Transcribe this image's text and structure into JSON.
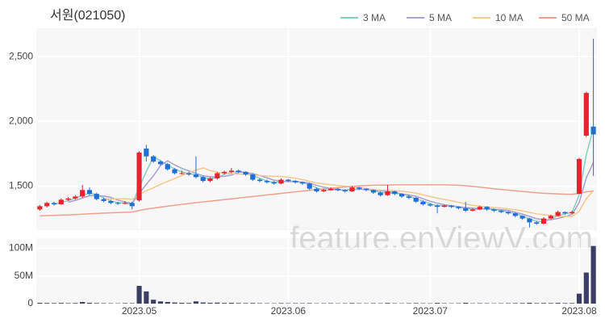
{
  "chart_data": {
    "type": "candlestick",
    "title": "서원(021050)",
    "watermark": "feature.enViewV.com",
    "legend": "top-right",
    "grid": true,
    "up_color": "#e8232f",
    "down_color": "#1f6fd6",
    "xlim": [
      -0.5,
      78.5
    ],
    "xticks": [
      {
        "value": 14,
        "label": "2023.05"
      },
      {
        "value": 35,
        "label": "2023.06"
      },
      {
        "value": 55,
        "label": "2023.07"
      },
      {
        "value": 76,
        "label": "2023.08"
      }
    ],
    "ylim": [
      1160,
      2720
    ],
    "yticks": [
      {
        "value": 1500,
        "label": "1,500"
      },
      {
        "value": 2000,
        "label": "2,000"
      },
      {
        "value": 2500,
        "label": "2,500"
      }
    ],
    "ohlc": [
      [
        1320,
        1355,
        1310,
        1345
      ],
      [
        1345,
        1380,
        1335,
        1370
      ],
      [
        1370,
        1380,
        1350,
        1360
      ],
      [
        1360,
        1405,
        1355,
        1395
      ],
      [
        1395,
        1415,
        1385,
        1405
      ],
      [
        1405,
        1430,
        1395,
        1420
      ],
      [
        1420,
        1510,
        1410,
        1470
      ],
      [
        1470,
        1490,
        1430,
        1440
      ],
      [
        1440,
        1450,
        1390,
        1400
      ],
      [
        1400,
        1410,
        1375,
        1385
      ],
      [
        1385,
        1395,
        1360,
        1370
      ],
      [
        1370,
        1380,
        1355,
        1365
      ],
      [
        1365,
        1385,
        1360,
        1370
      ],
      [
        1370,
        1380,
        1320,
        1345
      ],
      [
        1390,
        1770,
        1380,
        1760
      ],
      [
        1790,
        1820,
        1690,
        1730
      ],
      [
        1730,
        1740,
        1680,
        1690
      ],
      [
        1690,
        1700,
        1660,
        1670
      ],
      [
        1670,
        1680,
        1620,
        1630
      ],
      [
        1630,
        1640,
        1590,
        1600
      ],
      [
        1600,
        1620,
        1590,
        1600
      ],
      [
        1600,
        1610,
        1580,
        1590
      ],
      [
        1590,
        1730,
        1560,
        1570
      ],
      [
        1570,
        1580,
        1530,
        1540
      ],
      [
        1540,
        1570,
        1530,
        1560
      ],
      [
        1560,
        1610,
        1550,
        1600
      ],
      [
        1600,
        1620,
        1590,
        1610
      ],
      [
        1610,
        1640,
        1600,
        1620
      ],
      [
        1620,
        1630,
        1600,
        1610
      ],
      [
        1610,
        1615,
        1580,
        1590
      ],
      [
        1590,
        1600,
        1540,
        1550
      ],
      [
        1550,
        1560,
        1530,
        1540
      ],
      [
        1540,
        1550,
        1520,
        1530
      ],
      [
        1530,
        1540,
        1510,
        1520
      ],
      [
        1520,
        1560,
        1515,
        1550
      ],
      [
        1550,
        1555,
        1530,
        1540
      ],
      [
        1540,
        1545,
        1520,
        1530
      ],
      [
        1530,
        1535,
        1510,
        1520
      ],
      [
        1520,
        1525,
        1470,
        1480
      ],
      [
        1480,
        1490,
        1450,
        1460
      ],
      [
        1460,
        1480,
        1455,
        1470
      ],
      [
        1470,
        1490,
        1465,
        1480
      ],
      [
        1480,
        1485,
        1460,
        1470
      ],
      [
        1470,
        1475,
        1450,
        1460
      ],
      [
        1460,
        1500,
        1455,
        1490
      ],
      [
        1490,
        1495,
        1470,
        1480
      ],
      [
        1480,
        1485,
        1460,
        1470
      ],
      [
        1470,
        1475,
        1440,
        1450
      ],
      [
        1450,
        1460,
        1420,
        1430
      ],
      [
        1430,
        1510,
        1425,
        1460
      ],
      [
        1460,
        1465,
        1430,
        1440
      ],
      [
        1440,
        1445,
        1410,
        1420
      ],
      [
        1420,
        1430,
        1400,
        1410
      ],
      [
        1410,
        1415,
        1370,
        1380
      ],
      [
        1380,
        1390,
        1350,
        1360
      ],
      [
        1360,
        1370,
        1340,
        1350
      ],
      [
        1350,
        1360,
        1290,
        1340
      ],
      [
        1340,
        1360,
        1335,
        1350
      ],
      [
        1350,
        1355,
        1330,
        1340
      ],
      [
        1340,
        1345,
        1320,
        1330
      ],
      [
        1330,
        1380,
        1300,
        1310
      ],
      [
        1310,
        1330,
        1305,
        1320
      ],
      [
        1320,
        1350,
        1315,
        1340
      ],
      [
        1340,
        1345,
        1310,
        1320
      ],
      [
        1320,
        1325,
        1300,
        1310
      ],
      [
        1310,
        1315,
        1290,
        1300
      ],
      [
        1300,
        1305,
        1280,
        1290
      ],
      [
        1290,
        1295,
        1260,
        1270
      ],
      [
        1270,
        1275,
        1240,
        1250
      ],
      [
        1250,
        1255,
        1180,
        1220
      ],
      [
        1220,
        1230,
        1200,
        1210
      ],
      [
        1210,
        1260,
        1205,
        1250
      ],
      [
        1250,
        1280,
        1245,
        1270
      ],
      [
        1270,
        1310,
        1265,
        1300
      ],
      [
        1300,
        1305,
        1280,
        1290
      ],
      [
        1290,
        1310,
        1285,
        1300
      ],
      [
        1440,
        1720,
        1440,
        1710
      ],
      [
        1890,
        2230,
        1880,
        2220
      ],
      [
        1960,
        2640,
        1580,
        1900
      ]
    ],
    "series": [
      {
        "name": "3 MA",
        "color": "#86d0c0",
        "values": [
          null,
          null,
          1358,
          1375,
          1387,
          1407,
          1432,
          1443,
          1437,
          1408,
          1385,
          1373,
          1368,
          1360,
          1492,
          1612,
          1727,
          1697,
          1663,
          1633,
          1610,
          1597,
          1587,
          1567,
          1557,
          1567,
          1590,
          1610,
          1613,
          1607,
          1583,
          1560,
          1540,
          1530,
          1533,
          1537,
          1540,
          1530,
          1510,
          1487,
          1470,
          1470,
          1473,
          1470,
          1473,
          1477,
          1480,
          1467,
          1450,
          1447,
          1443,
          1440,
          1423,
          1403,
          1383,
          1363,
          1350,
          1347,
          1343,
          1340,
          1327,
          1320,
          1323,
          1327,
          1323,
          1310,
          1300,
          1287,
          1270,
          1247,
          1227,
          1227,
          1243,
          1273,
          1287,
          1297,
          1433,
          1743,
          1943
        ]
      },
      {
        "name": "5 MA",
        "color": "#ab9fd3",
        "values": [
          null,
          null,
          null,
          null,
          1375,
          1390,
          1408,
          1426,
          1427,
          1423,
          1413,
          1392,
          1378,
          1367,
          1442,
          1514,
          1579,
          1659,
          1696,
          1664,
          1638,
          1618,
          1598,
          1580,
          1572,
          1572,
          1576,
          1586,
          1608,
          1606,
          1596,
          1582,
          1564,
          1546,
          1538,
          1536,
          1534,
          1532,
          1524,
          1506,
          1492,
          1482,
          1472,
          1468,
          1474,
          1476,
          1474,
          1470,
          1464,
          1458,
          1452,
          1440,
          1432,
          1422,
          1402,
          1384,
          1368,
          1356,
          1348,
          1342,
          1334,
          1330,
          1328,
          1324,
          1320,
          1318,
          1312,
          1298,
          1284,
          1266,
          1248,
          1240,
          1240,
          1250,
          1264,
          1282,
          1374,
          1564,
          1684
        ]
      },
      {
        "name": "10 MA",
        "color": "#f4c98d",
        "values": [
          null,
          null,
          null,
          null,
          null,
          null,
          null,
          null,
          null,
          1399,
          1402,
          1402,
          1403,
          1398,
          1434,
          1465,
          1487,
          1514,
          1537,
          1559,
          1582,
          1604,
          1624,
          1641,
          1621,
          1608,
          1600,
          1595,
          1593,
          1592,
          1587,
          1582,
          1578,
          1576,
          1575,
          1569,
          1561,
          1551,
          1538,
          1525,
          1517,
          1511,
          1505,
          1499,
          1493,
          1487,
          1481,
          1474,
          1469,
          1469,
          1466,
          1460,
          1454,
          1446,
          1433,
          1420,
          1407,
          1397,
          1388,
          1375,
          1362,
          1352,
          1345,
          1340,
          1335,
          1331,
          1325,
          1317,
          1308,
          1297,
          1286,
          1279,
          1272,
          1268,
          1266,
          1265,
          1307,
          1402,
          1467
        ]
      },
      {
        "name": "50 MA",
        "color": "#f2a090",
        "values": [
          1270,
          1272,
          1274,
          1276,
          1278,
          1280,
          1283,
          1286,
          1289,
          1292,
          1294,
          1296,
          1298,
          1300,
          1312,
          1322,
          1330,
          1338,
          1345,
          1352,
          1359,
          1366,
          1372,
          1378,
          1384,
          1390,
          1396,
          1402,
          1408,
          1414,
          1420,
          1426,
          1432,
          1438,
          1444,
          1450,
          1456,
          1462,
          1468,
          1474,
          1479,
          1484,
          1489,
          1494,
          1498,
          1502,
          1505,
          1507,
          1508,
          1509,
          1510,
          1510,
          1510,
          1510,
          1510,
          1510,
          1510,
          1510,
          1509,
          1507,
          1503,
          1498,
          1492,
          1486,
          1480,
          1474,
          1469,
          1464,
          1459,
          1454,
          1449,
          1445,
          1442,
          1440,
          1438,
          1437,
          1444,
          1456,
          1462
        ]
      }
    ],
    "volume": {
      "color": "#3b3e63",
      "ylim": [
        0,
        118000000
      ],
      "yticks": [
        0,
        {
          "value": 50000000,
          "label": "50M"
        },
        {
          "value": 100000000,
          "label": "100M"
        }
      ],
      "values": [
        1500000,
        1200000,
        1000000,
        1300000,
        900000,
        1100000,
        3000000,
        1500000,
        1000000,
        800000,
        700000,
        600000,
        900000,
        800000,
        32000000,
        22000000,
        7000000,
        4000000,
        3000000,
        2000000,
        1500000,
        1200000,
        4000000,
        2000000,
        1500000,
        1800000,
        1200000,
        1400000,
        1000000,
        900000,
        1100000,
        800000,
        700000,
        600000,
        900000,
        700000,
        800000,
        700000,
        900000,
        600000,
        700000,
        800000,
        600000,
        700000,
        1000000,
        700000,
        600000,
        800000,
        700000,
        1200000,
        700000,
        600000,
        800000,
        900000,
        700000,
        600000,
        1300000,
        700000,
        600000,
        700000,
        1500000,
        600000,
        800000,
        700000,
        600000,
        700000,
        800000,
        900000,
        1000000,
        1500000,
        900000,
        1100000,
        1000000,
        1300000,
        900000,
        1000000,
        18000000,
        56000000,
        104000000
      ]
    }
  }
}
